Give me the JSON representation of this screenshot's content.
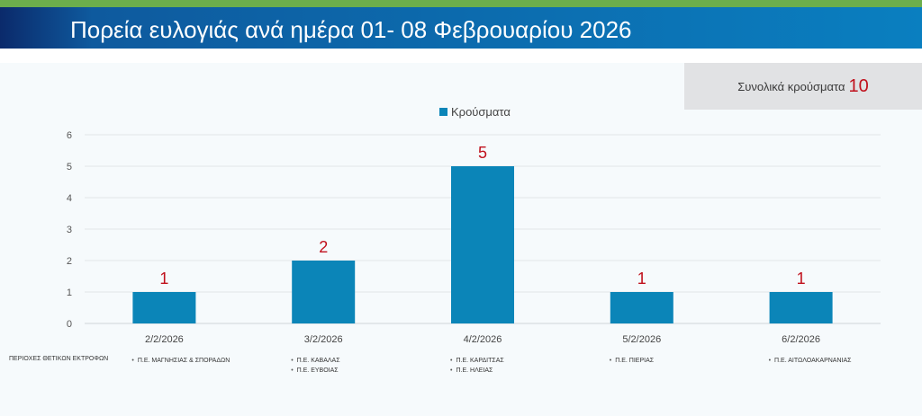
{
  "header": {
    "title": "Πορεία ευλογιάς ανά ημέρα 01- 08 Φεβρουαρίου 2026"
  },
  "summary": {
    "total_label": "Συνολικά κρούσματα",
    "total_value": "10"
  },
  "colors": {
    "bar": "#0b85b8",
    "data_label": "#c0101c",
    "header_stripe": "#6cae4c"
  },
  "chart_data": {
    "type": "bar",
    "categories": [
      "2/2/2026",
      "3/2/2026",
      "4/2/2026",
      "5/2/2026",
      "6/2/2026"
    ],
    "series": [
      {
        "name": "Κρούσματα",
        "values": [
          1,
          2,
          5,
          1,
          1
        ]
      }
    ],
    "title": "",
    "xlabel": "",
    "ylabel": "",
    "ylim": [
      0,
      6
    ],
    "yticks": [
      0,
      1,
      2,
      3,
      4,
      5,
      6
    ],
    "grid": true,
    "legend": "top-center",
    "data_labels": true
  },
  "regions": {
    "label": "ΠΕΡΙΟΧΕΣ ΘΕΤΙΚΩΝ ΕΚΤΡΟΦΩΝ",
    "by_date": [
      [
        "Π.Ε. ΜΑΓΝΗΣΙΑΣ & ΣΠΟΡΑΔΩΝ"
      ],
      [
        "Π.Ε. ΚΑΒΑΛΑΣ",
        "Π.Ε. ΕΥΒΟΙΑΣ"
      ],
      [
        "Π.Ε. ΚΑΡΔΙΤΣΑΣ",
        "Π.Ε. ΗΛΕΙΑΣ"
      ],
      [
        "Π.Ε. ΠΙΕΡΙΑΣ"
      ],
      [
        "Π.Ε. ΑΙΤΩΛΟΑΚΑΡΝΑΝΙΑΣ"
      ]
    ]
  }
}
